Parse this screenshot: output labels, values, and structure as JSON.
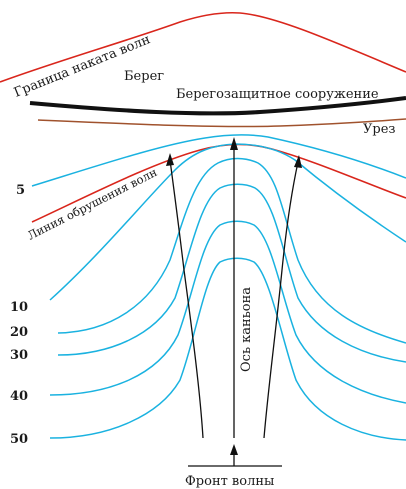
{
  "labels": {
    "runup_limit": "Граница наката волн",
    "shore": "Берег",
    "structure": "Берегозащитное сооружение",
    "waterline": "Урез",
    "breaking_line": "Линия обрушения волн",
    "canyon_axis": "Ось каньона",
    "wave_front": "Фронт волны"
  },
  "depths": [
    "5",
    "10",
    "20",
    "30",
    "40",
    "50"
  ],
  "colors": {
    "isobath": "#1ab2e0",
    "runup_limit": "#d9261c",
    "breaking_line": "#d9261c",
    "waterline": "#a0522d",
    "structure": "#111111",
    "rays": "#111111"
  }
}
